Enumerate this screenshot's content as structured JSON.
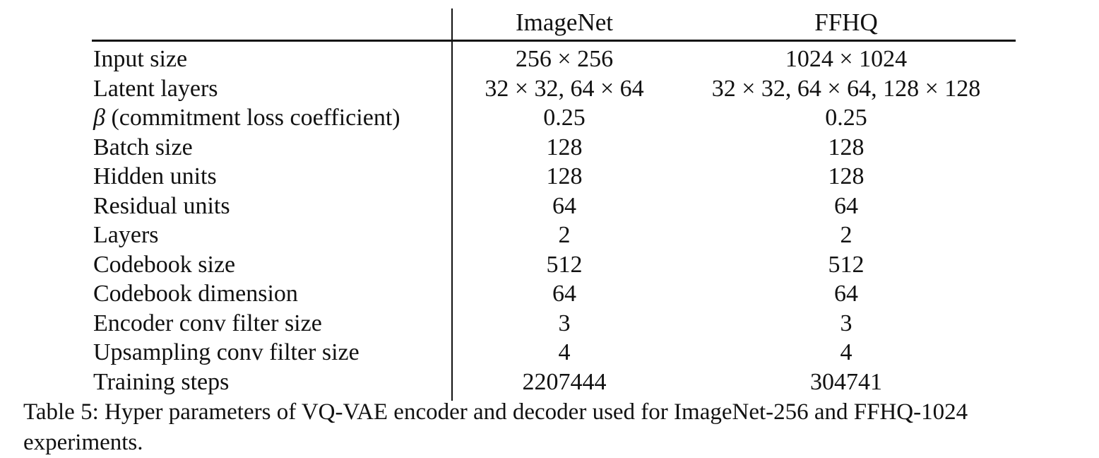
{
  "table": {
    "headers": {
      "imagenet": "ImageNet",
      "ffhq": "FFHQ"
    },
    "rows": [
      {
        "label": "Input size",
        "imagenet": "256 × 256",
        "ffhq": "1024 × 1024"
      },
      {
        "label": "Latent layers",
        "imagenet": "32 × 32, 64 × 64",
        "ffhq": "32 × 32, 64 × 64, 128 × 128"
      },
      {
        "label_symbol": "β",
        "label": " (commitment loss coefficient)",
        "imagenet": "0.25",
        "ffhq": "0.25"
      },
      {
        "label": "Batch size",
        "imagenet": "128",
        "ffhq": "128"
      },
      {
        "label": "Hidden units",
        "imagenet": "128",
        "ffhq": "128"
      },
      {
        "label": "Residual units",
        "imagenet": "64",
        "ffhq": "64"
      },
      {
        "label": "Layers",
        "imagenet": "2",
        "ffhq": "2"
      },
      {
        "label": "Codebook size",
        "imagenet": "512",
        "ffhq": "512"
      },
      {
        "label": "Codebook dimension",
        "imagenet": "64",
        "ffhq": "64"
      },
      {
        "label": "Encoder conv filter size",
        "imagenet": "3",
        "ffhq": "3"
      },
      {
        "label": "Upsampling conv filter size",
        "imagenet": "4",
        "ffhq": "4"
      },
      {
        "label": "Training steps",
        "imagenet": "2207444",
        "ffhq": "304741"
      }
    ]
  },
  "caption": "Table 5: Hyper parameters of VQ-VAE encoder and decoder used for ImageNet-256 and FFHQ-1024 experiments."
}
